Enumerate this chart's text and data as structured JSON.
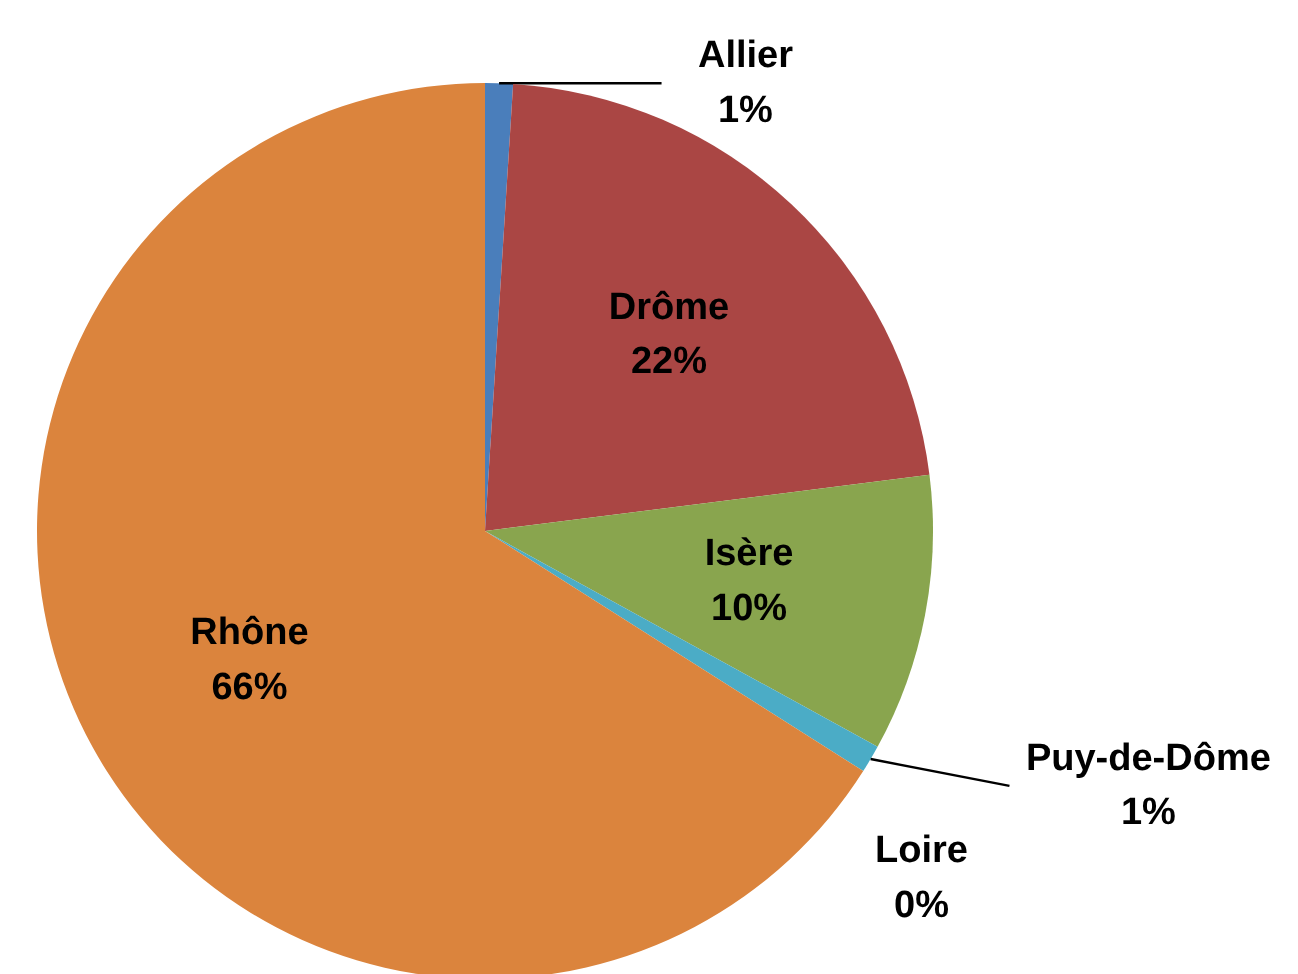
{
  "chart_data": {
    "type": "pie",
    "categories": [
      "Allier",
      "Drôme",
      "Isère",
      "Puy-de-Dôme",
      "Loire",
      "Rhône"
    ],
    "values": [
      1,
      22,
      10,
      1,
      0,
      66
    ],
    "colors": [
      "#4a7ebb",
      "#aa4644",
      "#89a54e",
      "#4bacc6",
      "#3d7fb8",
      "#db843d"
    ],
    "value_labels": [
      "1%",
      "22%",
      "10%",
      "1%",
      "0%",
      "66%"
    ]
  }
}
